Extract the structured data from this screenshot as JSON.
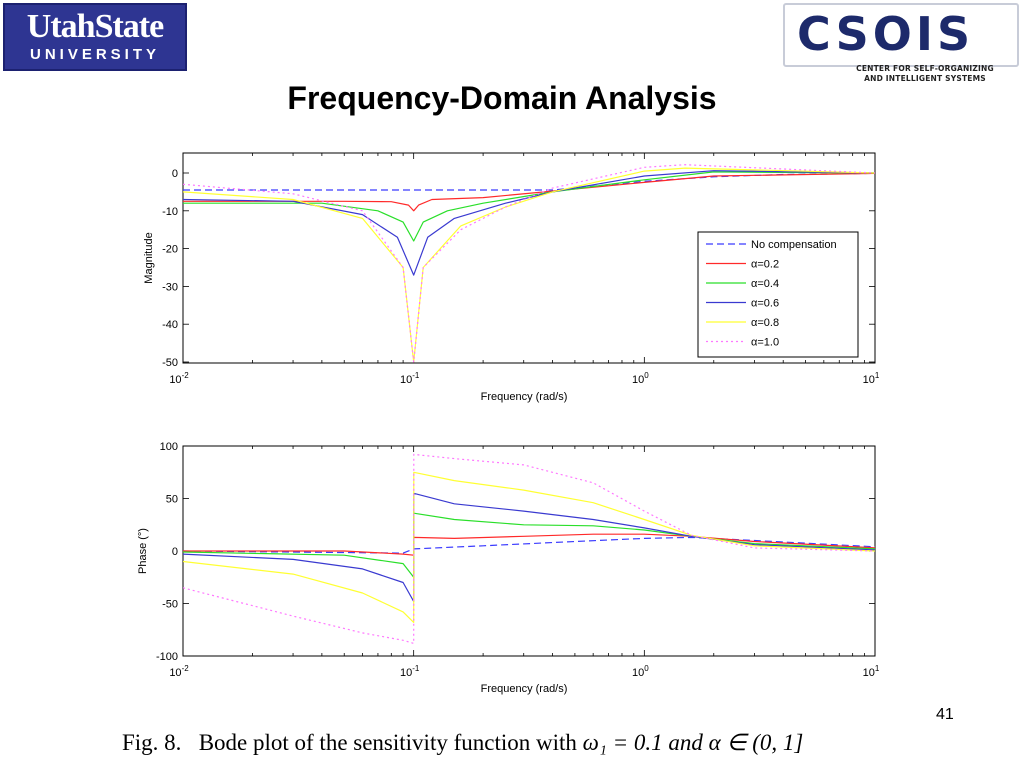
{
  "logos": {
    "usu_line1": "UtahState",
    "usu_line2": "UNIVERSITY",
    "csois_word": "CSOIS",
    "csois_sub1": "CENTER FOR SELF-ORGANIZING",
    "csois_sub2": "AND INTELLIGENT SYSTEMS"
  },
  "slide_title": "Frequency-Domain Analysis",
  "page_number": "41",
  "caption": {
    "prefix": "Fig. 8.",
    "text": "Bode plot of the sensitivity function with",
    "math": "ω₁ = 0.1 and α ∈ (0, 1]"
  },
  "colors": {
    "no_compensation": "#3b3bff",
    "a02": "#ff2a2a",
    "a04": "#2adf2a",
    "a06": "#3a3ad0",
    "a08": "#ffff33",
    "a10": "#ff77ff"
  },
  "chart_data": [
    {
      "type": "line",
      "title": "",
      "xlabel": "Frequency (rad/s)",
      "ylabel": "Magnitude",
      "xscale": "log",
      "xlim": [
        0.01,
        10
      ],
      "ylim": [
        -50,
        5
      ],
      "xticks": [
        "10^-2",
        "10^-1",
        "10^0",
        "10^1"
      ],
      "yticks": [
        0,
        -10,
        -20,
        -30,
        -40,
        -50
      ],
      "legend_position": "right",
      "series": [
        {
          "name": "No compensation",
          "style": "dashed",
          "color_key": "no_compensation",
          "x": [
            0.01,
            0.3,
            0.4,
            0.6,
            1.0,
            2.0,
            4.0,
            10.0
          ],
          "y": [
            -4.5,
            -4.5,
            -4.5,
            -3.5,
            -2.2,
            -1.0,
            -0.4,
            -0.1
          ]
        },
        {
          "name": "α=0.2",
          "style": "solid",
          "color_key": "a02",
          "x": [
            0.01,
            0.05,
            0.08,
            0.095,
            0.1,
            0.105,
            0.12,
            0.2,
            0.4,
            1.0,
            2.0,
            10.0
          ],
          "y": [
            -7.5,
            -7.5,
            -7.6,
            -8.5,
            -10,
            -8.5,
            -7.0,
            -6.5,
            -4.8,
            -2.5,
            -0.8,
            -0.1
          ]
        },
        {
          "name": "α=0.4",
          "style": "solid",
          "color_key": "a04",
          "x": [
            0.01,
            0.04,
            0.07,
            0.09,
            0.1,
            0.11,
            0.14,
            0.2,
            0.4,
            1.0,
            2.0,
            10.0
          ],
          "y": [
            -8,
            -8,
            -10,
            -13,
            -18,
            -13,
            -10,
            -8,
            -5,
            -1.8,
            0.3,
            0
          ]
        },
        {
          "name": "α=0.6",
          "style": "solid",
          "color_key": "a06",
          "x": [
            0.01,
            0.03,
            0.06,
            0.085,
            0.1,
            0.115,
            0.15,
            0.25,
            0.4,
            1.0,
            2.0,
            10.0
          ],
          "y": [
            -7,
            -7.5,
            -11,
            -17,
            -27,
            -17,
            -12,
            -8,
            -5,
            -0.8,
            0.6,
            0
          ]
        },
        {
          "name": "α=0.8",
          "style": "solid",
          "color_key": "a08",
          "x": [
            0.01,
            0.03,
            0.06,
            0.09,
            0.1,
            0.11,
            0.16,
            0.25,
            0.4,
            1.0,
            1.5,
            10.0
          ],
          "y": [
            -5,
            -7,
            -12,
            -25,
            -50,
            -25,
            -14,
            -9,
            -5,
            0.5,
            1.3,
            0
          ]
        },
        {
          "name": "α=1.0",
          "style": "dotted",
          "color_key": "a10",
          "x": [
            0.01,
            0.03,
            0.06,
            0.09,
            0.1,
            0.11,
            0.16,
            0.25,
            0.4,
            1.0,
            1.5,
            10.0
          ],
          "y": [
            -3,
            -5.5,
            -10,
            -25,
            -50,
            -25,
            -15,
            -9,
            -4,
            1.5,
            2.2,
            0
          ]
        }
      ]
    },
    {
      "type": "line",
      "title": "",
      "xlabel": "Frequency (rad/s)",
      "ylabel": "Phase (°)",
      "xscale": "log",
      "xlim": [
        0.01,
        10
      ],
      "ylim": [
        -100,
        100
      ],
      "xticks": [
        "10^-2",
        "10^-1",
        "10^0",
        "10^1"
      ],
      "yticks": [
        100,
        50,
        0,
        -50,
        -100
      ],
      "series": [
        {
          "name": "No compensation",
          "style": "dashed",
          "color_key": "no_compensation",
          "x": [
            0.01,
            0.09,
            0.1,
            0.2,
            0.5,
            1.0,
            1.6,
            3.0,
            10.0
          ],
          "y": [
            0,
            -2,
            2,
            5,
            9,
            12,
            13,
            10,
            4
          ]
        },
        {
          "name": "α=0.2",
          "style": "solid",
          "color_key": "a02",
          "x": [
            0.01,
            0.05,
            0.09,
            0.1,
            0.1001,
            0.15,
            0.3,
            0.6,
            1.0,
            1.6,
            3.0,
            10.0
          ],
          "y": [
            0,
            0,
            -3,
            -4,
            13,
            12,
            14,
            16,
            16,
            14,
            9,
            3
          ]
        },
        {
          "name": "α=0.4",
          "style": "solid",
          "color_key": "a04",
          "x": [
            0.01,
            0.05,
            0.09,
            0.1,
            0.1001,
            0.15,
            0.3,
            0.6,
            1.0,
            1.6,
            3.0,
            10.0
          ],
          "y": [
            -1,
            -4,
            -12,
            -25,
            36,
            30,
            25,
            24,
            20,
            14,
            7,
            2
          ]
        },
        {
          "name": "α=0.6",
          "style": "solid",
          "color_key": "a06",
          "x": [
            0.01,
            0.03,
            0.06,
            0.09,
            0.1,
            0.1001,
            0.15,
            0.3,
            0.6,
            1.0,
            1.6,
            3.0,
            10.0
          ],
          "y": [
            -3,
            -8,
            -17,
            -30,
            -48,
            55,
            45,
            38,
            30,
            22,
            14,
            6,
            1
          ]
        },
        {
          "name": "α=0.8",
          "style": "solid",
          "color_key": "a08",
          "x": [
            0.01,
            0.03,
            0.06,
            0.09,
            0.1,
            0.1001,
            0.15,
            0.3,
            0.6,
            1.0,
            1.6,
            3.0,
            10.0
          ],
          "y": [
            -10,
            -22,
            -40,
            -58,
            -68,
            75,
            67,
            58,
            46,
            30,
            15,
            5,
            0
          ]
        },
        {
          "name": "α=1.0",
          "style": "dotted",
          "color_key": "a10",
          "x": [
            0.01,
            0.03,
            0.06,
            0.09,
            0.1,
            0.1001,
            0.15,
            0.3,
            0.6,
            1.0,
            1.6,
            3.0,
            10.0
          ],
          "y": [
            -35,
            -62,
            -78,
            -85,
            -88,
            92,
            88,
            82,
            65,
            38,
            15,
            3,
            0
          ]
        }
      ]
    }
  ]
}
